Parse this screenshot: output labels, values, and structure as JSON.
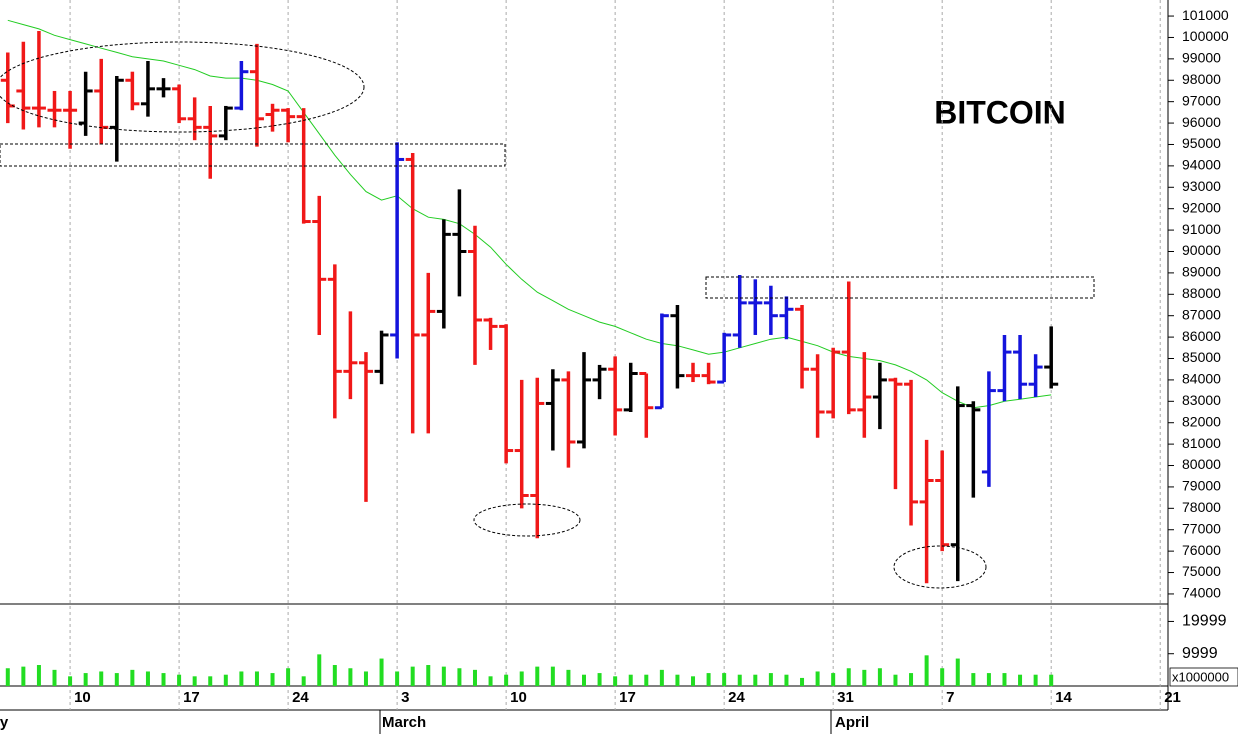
{
  "chart_data": {
    "type": "ohlc",
    "title": "BITCOIN",
    "categories": [
      null,
      null,
      null,
      null,
      "10",
      null,
      null,
      null,
      null,
      null,
      null,
      "17",
      null,
      null,
      null,
      null,
      null,
      null,
      "24",
      null,
      null,
      null,
      null,
      null,
      null,
      "3",
      null,
      null,
      null,
      null,
      null,
      null,
      "10",
      null,
      null,
      null,
      null,
      null,
      null,
      "17",
      null,
      null,
      null,
      null,
      null,
      null,
      "24",
      null,
      null,
      null,
      null,
      null,
      null,
      "31",
      null,
      null,
      null,
      null,
      null,
      null,
      "7",
      null,
      null,
      null,
      null,
      null,
      null,
      "14",
      null,
      null,
      null,
      null,
      null,
      null,
      "21"
    ],
    "months": [
      "ry",
      "March",
      "April"
    ],
    "open": [
      98000,
      97500,
      96700,
      96600,
      96600,
      96000,
      97500,
      95800,
      98000,
      96900,
      97600,
      97600,
      96200,
      95800,
      95400,
      96700,
      98400,
      96400,
      96600,
      96300,
      91400,
      88700,
      84400,
      84800,
      84400,
      86100,
      94300,
      86100,
      87200,
      90800,
      90000,
      86800,
      86500,
      80700,
      78600,
      82900,
      84000,
      81100,
      84000,
      84500,
      82600,
      84300,
      82700,
      87000,
      84200,
      84200,
      83900,
      86100,
      87600,
      87600,
      87000,
      87300,
      84500,
      82500,
      85300,
      82600,
      83200,
      84000,
      83800,
      78300,
      79300,
      76300,
      82800,
      79700,
      83500,
      85300,
      83800,
      84600,
      null,
      null,
      null,
      null,
      null,
      null,
      null
    ],
    "high": [
      99300,
      99800,
      100300,
      97500,
      97500,
      98400,
      99000,
      98200,
      98400,
      98900,
      98100,
      97800,
      97200,
      96800,
      96800,
      98900,
      99700,
      96900,
      96700,
      96700,
      92600,
      89400,
      87200,
      85300,
      86300,
      95100,
      94600,
      89000,
      91500,
      92900,
      91200,
      86900,
      86600,
      84000,
      84100,
      84500,
      84400,
      85300,
      84700,
      85100,
      84800,
      84300,
      87100,
      87500,
      84800,
      84800,
      86200,
      88900,
      88700,
      88400,
      87900,
      87500,
      85200,
      85500,
      88600,
      85300,
      84800,
      84100,
      84000,
      81200,
      80700,
      83700,
      83000,
      84400,
      86100,
      86100,
      85200,
      86500,
      null,
      null,
      null,
      null,
      null,
      null,
      null
    ],
    "low": [
      96000,
      95700,
      95800,
      95800,
      94800,
      95400,
      95000,
      94200,
      96600,
      96300,
      97200,
      96000,
      95200,
      93400,
      95200,
      96600,
      94900,
      95600,
      95100,
      91300,
      86100,
      82200,
      83100,
      78300,
      83800,
      85000,
      81500,
      81500,
      86400,
      87900,
      84700,
      85400,
      80100,
      78000,
      76600,
      80700,
      79900,
      80800,
      83100,
      81400,
      82500,
      81300,
      82700,
      83600,
      83900,
      83800,
      83900,
      85500,
      86100,
      86100,
      85900,
      83600,
      81300,
      82200,
      82400,
      81300,
      81700,
      78900,
      77200,
      74500,
      76000,
      74600,
      78500,
      79000,
      83000,
      83100,
      83200,
      83600,
      null,
      null,
      null,
      null,
      null,
      null,
      null
    ],
    "close": [
      96800,
      96700,
      96700,
      96600,
      96600,
      97500,
      95800,
      98000,
      96900,
      97600,
      97600,
      96200,
      95800,
      95400,
      96700,
      98400,
      96200,
      96600,
      96300,
      91400,
      88700,
      84400,
      84800,
      84400,
      86100,
      94300,
      86100,
      87200,
      90800,
      90000,
      86800,
      86500,
      80700,
      78600,
      82900,
      84000,
      81100,
      84000,
      84500,
      82600,
      84300,
      82700,
      87000,
      84200,
      84200,
      83900,
      86100,
      87600,
      87600,
      87000,
      87300,
      84500,
      82500,
      85300,
      82600,
      83200,
      84000,
      83800,
      78300,
      79300,
      76300,
      82800,
      82600,
      83500,
      85300,
      83800,
      84600,
      83800,
      null,
      null,
      null,
      null,
      null,
      null,
      null
    ],
    "bar_colors": [
      "#f01818",
      "#f01818",
      "#f01818",
      "#f01818",
      "#f01818",
      "#000000",
      "#f01818",
      "#000000",
      "#f01818",
      "#000000",
      "#000000",
      "#f01818",
      "#f01818",
      "#f01818",
      "#000000",
      "#1414dc",
      "#f01818",
      "#f01818",
      "#f01818",
      "#f01818",
      "#f01818",
      "#f01818",
      "#f01818",
      "#f01818",
      "#000000",
      "#1414dc",
      "#f01818",
      "#f01818",
      "#000000",
      "#000000",
      "#f01818",
      "#f01818",
      "#f01818",
      "#f01818",
      "#f01818",
      "#000000",
      "#f01818",
      "#000000",
      "#000000",
      "#f01818",
      "#000000",
      "#f01818",
      "#1414dc",
      "#000000",
      "#f01818",
      "#f01818",
      "#1414dc",
      "#1414dc",
      "#1414dc",
      "#1414dc",
      "#1414dc",
      "#f01818",
      "#f01818",
      "#f01818",
      "#f01818",
      "#f01818",
      "#000000",
      "#f01818",
      "#f01818",
      "#f01818",
      "#f01818",
      "#000000",
      "#000000",
      "#1414dc",
      "#1414dc",
      "#1414dc",
      "#1414dc",
      "#000000",
      null,
      null,
      null,
      null,
      null,
      null,
      null
    ],
    "ylim": [
      73530,
      101750
    ],
    "yticks": [
      74000,
      75000,
      76000,
      77000,
      78000,
      79000,
      80000,
      81000,
      82000,
      83000,
      84000,
      85000,
      86000,
      87000,
      88000,
      89000,
      90000,
      91000,
      92000,
      93000,
      94000,
      95000,
      96000,
      97000,
      98000,
      99000,
      100000,
      101000
    ],
    "moving_average": {
      "color": "#22cc22",
      "values": [
        100800,
        100600,
        100400,
        100100,
        99900,
        99700,
        99500,
        99300,
        99100,
        99000,
        98900,
        98700,
        98500,
        98200,
        98100,
        98100,
        98000,
        97800,
        97500,
        96500,
        95500,
        94500,
        93600,
        92800,
        92400,
        92600,
        92000,
        91600,
        91500,
        91300,
        90800,
        90200,
        89400,
        88700,
        88100,
        87700,
        87300,
        87000,
        86700,
        86500,
        86200,
        85900,
        85700,
        85600,
        85400,
        85200,
        85300,
        85500,
        85700,
        85900,
        86000,
        85800,
        85600,
        85300,
        85100,
        85000,
        84900,
        84700,
        84400,
        84000,
        83400,
        83000,
        82700,
        82800,
        83000,
        83100,
        83200,
        83300,
        null,
        null,
        null,
        null,
        null,
        null,
        null
      ]
    },
    "volume": {
      "color": "#22dd22",
      "unit_label": "x1000000",
      "ylim": [
        0,
        25400
      ],
      "yticks": [
        9999,
        19999
      ],
      "values": [
        5500,
        6000,
        6500,
        5000,
        3000,
        4000,
        4500,
        4000,
        5000,
        4500,
        4000,
        3500,
        3000,
        3000,
        3500,
        4500,
        4500,
        4000,
        5500,
        3000,
        9800,
        6500,
        5500,
        4500,
        8500,
        4500,
        6000,
        6500,
        6000,
        5500,
        5000,
        3000,
        3500,
        4500,
        6000,
        6000,
        5000,
        3500,
        4000,
        3000,
        3500,
        3500,
        5000,
        3500,
        3000,
        4000,
        4000,
        3500,
        3500,
        4000,
        3500,
        2500,
        4500,
        4000,
        5500,
        5000,
        5500,
        3500,
        4000,
        9500,
        5500,
        8500,
        4000,
        4000,
        4000,
        3500,
        3500,
        3500,
        null,
        null,
        null,
        null,
        null,
        null,
        null
      ]
    }
  }
}
